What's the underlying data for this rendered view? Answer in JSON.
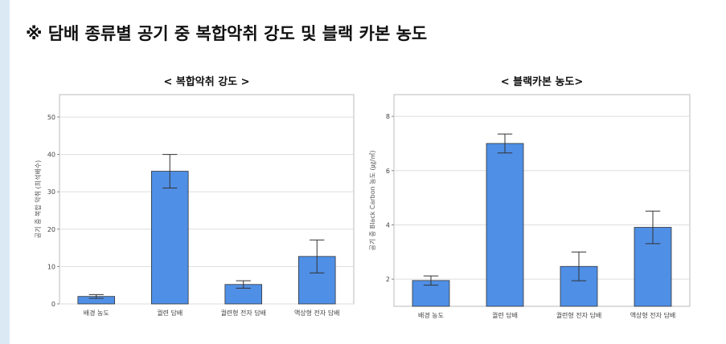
{
  "title": "※ 담배 종류별 공기 중 복합악취 강도 및 블랙 카본 농도",
  "chart_data": [
    {
      "type": "bar",
      "title": "< 복합악취 강도 >",
      "y_label": "공기 중 복합 악취 (희석배수)",
      "categories": [
        "배경 농도",
        "궐련 담배",
        "궐련형 전자 담배",
        "액상형 전자 담배"
      ],
      "values": [
        2,
        35.5,
        5.2,
        12.7
      ],
      "errors": [
        0.5,
        4.5,
        1,
        4.4
      ],
      "color": "#4f8fe6",
      "ylim": [
        0,
        56
      ],
      "yticks": [
        0,
        10,
        20,
        30,
        40,
        50
      ],
      "grid": true
    },
    {
      "type": "bar",
      "title": "< 블랙카본 농도>",
      "y_label": "공기 중 Black Carbon 농도 (㎍/㎥)",
      "categories": [
        "배경 농도",
        "궐련 담배",
        "궐련형 전자 담배",
        "액상형 전자 담배"
      ],
      "values": [
        1.95,
        7.0,
        2.47,
        3.91
      ],
      "errors": [
        0.17,
        0.35,
        0.53,
        0.6
      ],
      "color": "#4f8fe6",
      "ylim": [
        1,
        8.8
      ],
      "yticks": [
        2,
        4,
        6,
        8
      ],
      "grid": true
    }
  ]
}
